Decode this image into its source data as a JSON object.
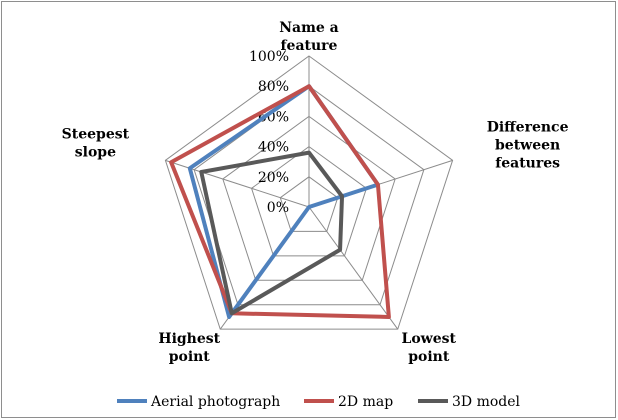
{
  "chart_data": {
    "type": "radar",
    "title": "",
    "categories": [
      [
        "Name a",
        "feature"
      ],
      [
        "Difference",
        "between",
        "features"
      ],
      [
        "Lowest",
        "point"
      ],
      [
        "Highest",
        "point"
      ],
      [
        "Steepest",
        "slope"
      ]
    ],
    "rlim": [
      0,
      100
    ],
    "ticks": [
      "0%",
      "20%",
      "40%",
      "60%",
      "80%",
      "100%"
    ],
    "grid": true,
    "legend_position": "bottom",
    "series": [
      {
        "name": "Aerial photograph",
        "color": "#4f81bd",
        "values": [
          80,
          48,
          0,
          90,
          83
        ]
      },
      {
        "name": "2D map",
        "color": "#c0504d",
        "values": [
          80,
          48,
          90,
          87,
          96
        ]
      },
      {
        "name": "3D model",
        "color": "#595959",
        "values": [
          36,
          23,
          35,
          87,
          75
        ]
      }
    ]
  }
}
